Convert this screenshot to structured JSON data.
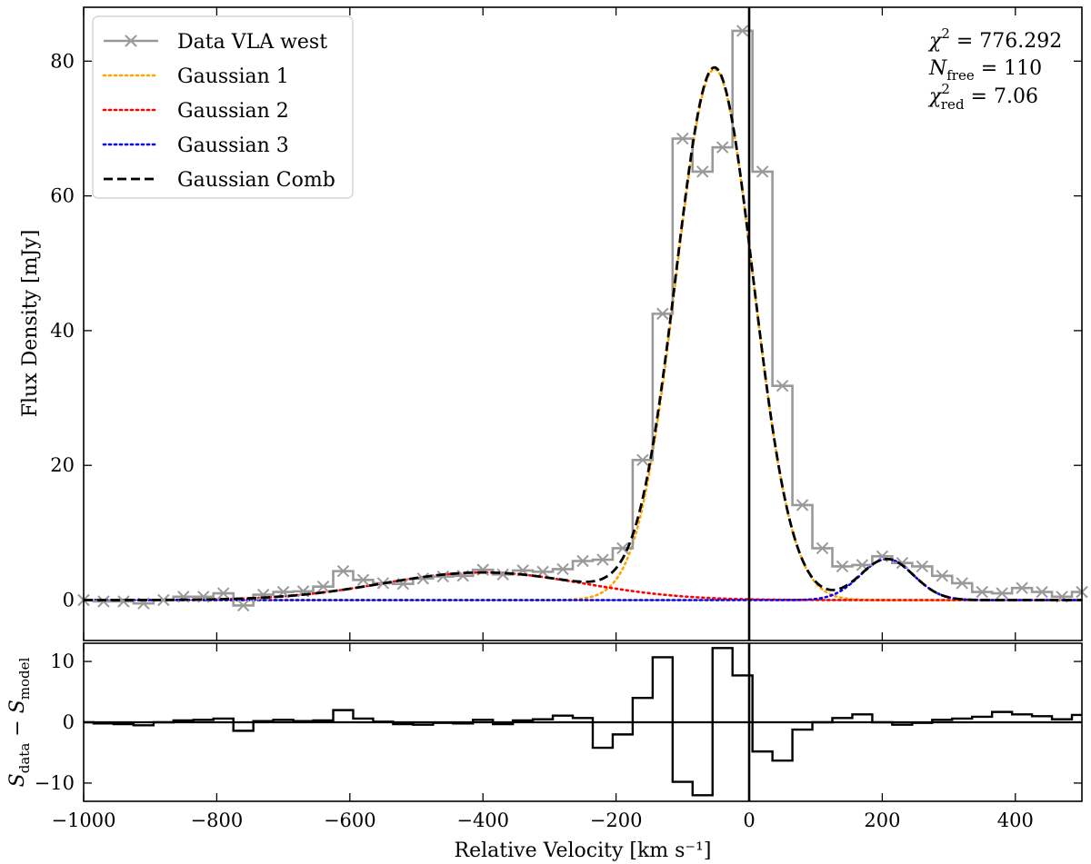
{
  "chart_data": [
    {
      "id": "main",
      "type": "line",
      "xlabel": "Relative Velocity [km s⁻¹]",
      "ylabel": "Flux Density [mJy]",
      "xlim": [
        -1000,
        500
      ],
      "ylim": [
        -6,
        88
      ],
      "xticks": [
        -1000,
        -800,
        -600,
        -400,
        -200,
        0,
        200,
        400
      ],
      "yticks": [
        0,
        20,
        40,
        60,
        80
      ],
      "x_tick_labels": [
        "−1000",
        "−800",
        "−600",
        "−400",
        "−200",
        "0",
        "200",
        "400"
      ],
      "y_tick_labels": [
        "0",
        "20",
        "40",
        "60",
        "80"
      ],
      "vline_x": 0,
      "legend": {
        "location": "upper-left",
        "entries": [
          {
            "label": "Data VLA west",
            "color": "#999999",
            "style": "solid-x"
          },
          {
            "label": "Gaussian 1",
            "color": "#ffa500",
            "style": "dotted"
          },
          {
            "label": "Gaussian 2",
            "color": "#ff0000",
            "style": "dotted"
          },
          {
            "label": "Gaussian 3",
            "color": "#0000ff",
            "style": "dotted"
          },
          {
            "label": "Gaussian Comb",
            "color": "#000000",
            "style": "dashed"
          }
        ]
      },
      "data_series": {
        "name": "Data VLA west",
        "color": "#999999",
        "x": [
          -1000,
          -970,
          -940,
          -910,
          -880,
          -850,
          -820,
          -790,
          -760,
          -730,
          -700,
          -670,
          -640,
          -610,
          -580,
          -550,
          -520,
          -490,
          -460,
          -430,
          -400,
          -370,
          -340,
          -310,
          -280,
          -250,
          -220,
          -190,
          -160,
          -130,
          -100,
          -70,
          -40,
          -10,
          20,
          50,
          80,
          110,
          140,
          170,
          200,
          230,
          260,
          290,
          320,
          350,
          380,
          410,
          440,
          470,
          500
        ],
        "y": [
          0.0,
          -0.2,
          -0.2,
          -0.5,
          0.0,
          0.5,
          0.5,
          1.0,
          -0.8,
          0.8,
          1.2,
          1.3,
          2.0,
          4.3,
          3.0,
          2.5,
          2.4,
          3.2,
          3.5,
          3.6,
          4.5,
          3.8,
          4.4,
          4.2,
          4.6,
          5.8,
          6.0,
          7.7,
          20.8,
          42.5,
          68.5,
          63.6,
          67.2,
          84.5,
          63.6,
          31.8,
          14.1,
          7.7,
          5.0,
          5.2,
          6.5,
          5.5,
          5.0,
          3.6,
          2.5,
          1.2,
          1.0,
          1.8,
          1.2,
          0.5,
          1.2
        ]
      },
      "gaussians": [
        {
          "name": "Gaussian 1",
          "color": "#ffa500",
          "amplitude": 78.8,
          "center": -52,
          "sigma": 58
        },
        {
          "name": "Gaussian 2",
          "color": "#ff0000",
          "amplitude": 4.1,
          "center": -400,
          "sigma": 150
        },
        {
          "name": "Gaussian 3",
          "color": "#0000ff",
          "amplitude": 6.1,
          "center": 207,
          "sigma": 40
        }
      ],
      "combined": {
        "name": "Gaussian Comb",
        "color": "#000000"
      },
      "annotations": {
        "chi2": {
          "symbol": "χ",
          "sup": "2",
          "value": " = 776.292"
        },
        "nfree": {
          "symbol": "N",
          "sub": "free",
          "value": " = 110"
        },
        "chi2red": {
          "symbol": "χ",
          "sup": "2",
          "sub": "red",
          "value": " = 7.06"
        }
      }
    },
    {
      "id": "residual",
      "type": "line",
      "ylabel_main": "S",
      "ylabel_sub1": "data",
      "ylabel_minus": " − S",
      "ylabel_sub2": "model",
      "xlim": [
        -1000,
        500
      ],
      "ylim": [
        -13,
        13
      ],
      "yticks": [
        -10,
        0,
        10
      ],
      "y_tick_labels": [
        "−10",
        "0",
        "10"
      ],
      "hline_y": 0,
      "vline_x": 0,
      "series": {
        "name": "Residual",
        "color": "#000000",
        "x": [
          -1000,
          -970,
          -940,
          -910,
          -880,
          -850,
          -820,
          -790,
          -760,
          -730,
          -700,
          -670,
          -640,
          -610,
          -580,
          -550,
          -520,
          -490,
          -460,
          -430,
          -400,
          -370,
          -340,
          -310,
          -280,
          -250,
          -220,
          -190,
          -160,
          -130,
          -100,
          -70,
          -40,
          -10,
          20,
          50,
          80,
          110,
          140,
          170,
          200,
          230,
          260,
          290,
          320,
          350,
          380,
          410,
          440,
          470,
          500
        ],
        "y": [
          0.0,
          -0.2,
          -0.3,
          -0.5,
          0.0,
          0.3,
          0.4,
          0.6,
          -1.4,
          0.2,
          0.4,
          0.2,
          0.3,
          2.0,
          0.6,
          0.1,
          -0.3,
          -0.4,
          -0.1,
          -0.2,
          0.4,
          -0.3,
          0.3,
          0.5,
          1.1,
          0.7,
          -4.2,
          -2.0,
          4.0,
          10.7,
          -9.8,
          -12.0,
          12.2,
          7.7,
          -4.8,
          -6.3,
          -1.2,
          0.0,
          0.7,
          1.3,
          0.0,
          -0.4,
          -0.1,
          0.4,
          0.6,
          0.9,
          1.7,
          1.3,
          1.0,
          0.5,
          1.2
        ]
      }
    }
  ]
}
